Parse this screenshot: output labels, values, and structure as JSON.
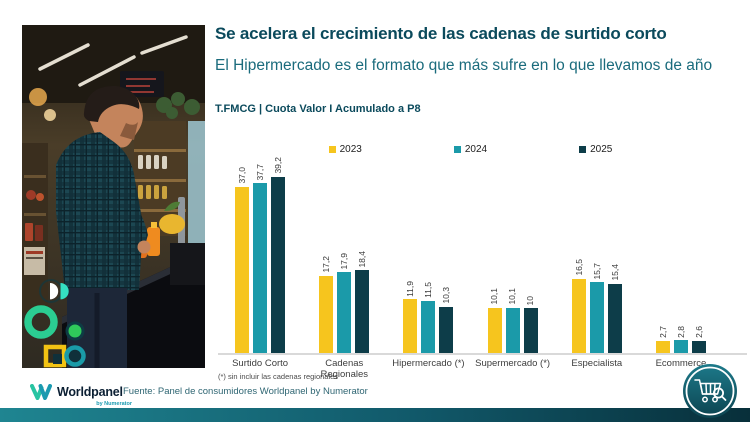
{
  "header": {
    "title": "Se acelera el crecimiento de las cadenas de surtido corto",
    "subtitle": "El Hipermercado es el formato que más sufre en lo que llevamos de año",
    "kicker": "T.FMCG | Cuota Valor I Acumulado a P8"
  },
  "chart_data": {
    "type": "bar",
    "title": "T.FMCG | Cuota Valor I Acumulado a P8",
    "categories": [
      "Surtido Corto",
      "Cadenas Regionales",
      "Hipermercado (*)",
      "Supermercado (*)",
      "Especialista",
      "Ecommerce"
    ],
    "series": [
      {
        "name": "2023",
        "color": "#F6C51E",
        "values": [
          37.0,
          17.2,
          11.9,
          10.1,
          16.5,
          2.7
        ],
        "labels": [
          "37,0",
          "17,2",
          "11,9",
          "10,1",
          "16,5",
          "2,7"
        ]
      },
      {
        "name": "2024",
        "color": "#1B9AA9",
        "values": [
          37.7,
          17.9,
          11.5,
          10.1,
          15.7,
          2.8
        ],
        "labels": [
          "37,7",
          "17,9",
          "11,5",
          "10,1",
          "15,7",
          "2,8"
        ]
      },
      {
        "name": "2025",
        "color": "#0D3D49",
        "values": [
          39.2,
          18.4,
          10.3,
          10.0,
          15.4,
          2.6
        ],
        "labels": [
          "39,2",
          "18,4",
          "10,3",
          "10",
          "15,4",
          "2,6"
        ]
      }
    ],
    "ylim": [
      0,
      42
    ],
    "grid": false,
    "legend_position": "top",
    "value_labels_rotated": true,
    "footnote": "(*) sin incluir las cadenas regionales"
  },
  "footer": {
    "source": "Fuente: Panel de consumidores Worldpanel by Numerator"
  },
  "logo": {
    "brand": "Worldpanel",
    "sub": "by Numerator"
  },
  "colors": {
    "title": "#0B4A5C",
    "subtitle": "#1A6B7C",
    "axis_line": "#D9D9D9",
    "footer_bar_left": "#1F8591",
    "footer_bar_right": "#082F3A",
    "badge_fill": "#135F6F"
  }
}
